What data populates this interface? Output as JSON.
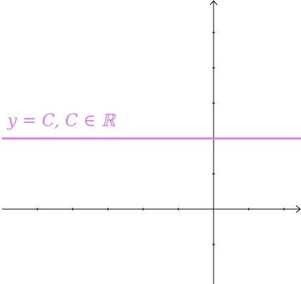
{
  "chart_data": {
    "type": "line",
    "title": "",
    "xlabel": "",
    "ylabel": "",
    "xlim": [
      -6,
      2.5
    ],
    "ylim": [
      -2,
      6
    ],
    "x_ticks": [
      -5,
      -4,
      -3,
      -2,
      -1,
      1,
      2
    ],
    "y_ticks": [
      -1,
      1,
      2,
      3,
      4,
      5
    ],
    "grid": false,
    "series": [
      {
        "x": [
          -6,
          2.5
        ],
        "values": [
          2,
          2
        ],
        "color": "#d580f2"
      }
    ],
    "annotations": [
      {
        "text": "y = C, C ∈ ℝ",
        "x": -5.85,
        "y": 2.35,
        "color": "#d580f2"
      }
    ]
  }
}
